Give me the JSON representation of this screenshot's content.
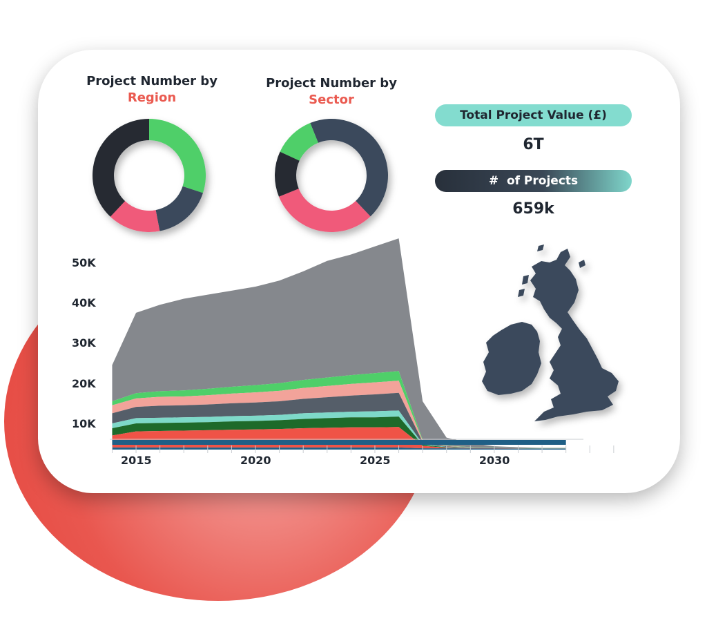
{
  "colors": {
    "accent": "#ea5a50",
    "teal": "#83dccf",
    "dark": "#28303b"
  },
  "donut_region": {
    "title": "Project Number by",
    "highlight": "Region"
  },
  "donut_sector": {
    "title": "Project Number by",
    "highlight": "Sector"
  },
  "kpi": {
    "value_label": "Total Project Value (£)",
    "value": "6T",
    "count_label": "#  of Projects",
    "count": "659k"
  },
  "map": {
    "icon": "uk-ireland-map-icon"
  },
  "chart_data": [
    {
      "type": "pie",
      "variant": "donut",
      "title": "Project Number by Region",
      "categories": [
        "green",
        "slate",
        "pink",
        "dark"
      ],
      "values": [
        30,
        17,
        15,
        38
      ],
      "colors": [
        "#4fcf69",
        "#3b4a5c",
        "#f05a7a",
        "#252b33"
      ]
    },
    {
      "type": "pie",
      "variant": "donut",
      "title": "Project Number by Sector",
      "categories": [
        "slate",
        "pink",
        "dark",
        "green"
      ],
      "values": [
        44,
        31,
        13,
        12
      ],
      "colors": [
        "#3b4a5c",
        "#f05a7a",
        "#252b33",
        "#4fcf69"
      ]
    },
    {
      "type": "area",
      "stacked": true,
      "x": [
        2014,
        2015,
        2016,
        2017,
        2018,
        2019,
        2020,
        2021,
        2022,
        2023,
        2024,
        2025,
        2026,
        2027,
        2028,
        2029,
        2030,
        2031,
        2032,
        2033
      ],
      "series": [
        {
          "color": "#1f5f86",
          "values": [
            500,
            500,
            500,
            500,
            500,
            500,
            500,
            500,
            500,
            500,
            500,
            500,
            500,
            300,
            300,
            250,
            250,
            200,
            200,
            200
          ]
        },
        {
          "color": "#ef5347",
          "values": [
            3000,
            4000,
            4100,
            4200,
            4300,
            4400,
            4500,
            4600,
            4800,
            4900,
            5000,
            5000,
            5100,
            600,
            150,
            70,
            60,
            40,
            30,
            30
          ]
        },
        {
          "color": "#1e6a2a",
          "values": [
            1800,
            2000,
            2000,
            2000,
            2000,
            2100,
            2100,
            2200,
            2300,
            2400,
            2500,
            2500,
            2600,
            300,
            100,
            50,
            40,
            30,
            20,
            20
          ]
        },
        {
          "color": "#7ed9c9",
          "values": [
            1200,
            1300,
            1300,
            1300,
            1300,
            1300,
            1300,
            1300,
            1400,
            1400,
            1400,
            1500,
            1500,
            200,
            80,
            40,
            30,
            20,
            15,
            15
          ]
        },
        {
          "color": "#555e69",
          "values": [
            2500,
            2800,
            3000,
            3000,
            3100,
            3200,
            3300,
            3400,
            3600,
            3800,
            4000,
            4200,
            4400,
            500,
            150,
            80,
            60,
            40,
            30,
            30
          ]
        },
        {
          "color": "#f2a39a",
          "values": [
            2000,
            2100,
            2200,
            2200,
            2300,
            2400,
            2500,
            2600,
            2700,
            2800,
            2900,
            3000,
            3000,
            300,
            100,
            60,
            40,
            30,
            20,
            20
          ]
        },
        {
          "color": "#4fcf69",
          "values": [
            1000,
            1300,
            1400,
            1500,
            1600,
            1700,
            1800,
            1900,
            2000,
            2100,
            2200,
            2300,
            2400,
            200,
            80,
            50,
            30,
            20,
            15,
            15
          ]
        },
        {
          "color": "#85888d",
          "values": [
            9000,
            20000,
            21500,
            22800,
            23400,
            23900,
            24500,
            25500,
            27000,
            29000,
            30000,
            31500,
            33000,
            9600,
            2000,
            1000,
            300,
            200,
            100,
            100
          ]
        }
      ],
      "xticks": [
        "2015",
        "2020",
        "2025",
        "2030"
      ],
      "xtick_values": [
        2015,
        2020,
        2025,
        2030
      ],
      "yticks": [
        "10K",
        "20K",
        "30K",
        "40K",
        "50K"
      ],
      "ytick_values": [
        10000,
        20000,
        30000,
        40000,
        50000
      ],
      "ylim": [
        5000,
        50000
      ],
      "xlim": [
        2013.9,
        2035.9
      ]
    }
  ]
}
